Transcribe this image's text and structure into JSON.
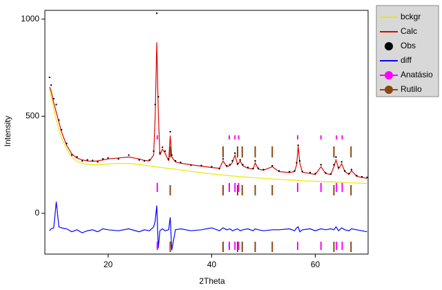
{
  "chart_data": {
    "type": "line",
    "x_label": "2Theta",
    "y_label": "Intensity",
    "xlim": [
      7.8,
      70.2
    ],
    "xticks": [
      20,
      40,
      60
    ],
    "ylim": [
      -210,
      1045
    ],
    "yticks": [
      0,
      500,
      1000
    ],
    "x": [
      8.7,
      9,
      9.5,
      10,
      10.5,
      11,
      12,
      13,
      14,
      15,
      16,
      17,
      18,
      19,
      20,
      22,
      24,
      26,
      27,
      28,
      28.8,
      29.1,
      29.4,
      29.7,
      30,
      30.5,
      31,
      31.7,
      32,
      32.3,
      33,
      34,
      36,
      38,
      40,
      41.5,
      42.2,
      42.9,
      43.5,
      44,
      44.5,
      45,
      45.5,
      46,
      47,
      48,
      48.4,
      49,
      50,
      51.7,
      53,
      55,
      56,
      56.4,
      56.7,
      57,
      57.5,
      59,
      60,
      61.1,
      62,
      63,
      63.6,
      64,
      64.5,
      65.1,
      65.7,
      66.5,
      67,
      68,
      69,
      70
    ],
    "series": [
      {
        "name": "bckgr",
        "color": "#e8e800",
        "style": "line",
        "values": [
          640,
          600,
          540,
          480,
          430,
          390,
          330,
          290,
          268,
          258,
          252,
          250,
          250,
          252,
          254,
          257,
          257,
          252,
          248,
          244,
          241,
          240,
          239,
          238,
          237,
          235,
          233,
          231,
          230,
          229,
          227,
          223,
          216,
          209,
          203,
          199,
          197,
          195,
          193,
          192,
          191,
          190,
          189,
          188,
          186,
          184,
          183,
          182,
          180,
          177,
          175,
          172,
          170,
          170,
          169,
          169,
          168,
          166,
          165,
          164,
          163,
          162,
          161,
          160,
          160,
          159,
          158,
          157,
          157,
          156,
          155,
          154
        ]
      },
      {
        "name": "Calc",
        "color": "#e00000",
        "style": "line",
        "values": [
          650,
          630,
          570,
          520,
          470,
          420,
          350,
          305,
          285,
          275,
          270,
          268,
          270,
          275,
          280,
          285,
          290,
          280,
          272,
          270,
          300,
          500,
          880,
          520,
          300,
          330,
          310,
          270,
          400,
          290,
          265,
          258,
          250,
          243,
          236,
          232,
          270,
          240,
          246,
          262,
          300,
          250,
          270,
          245,
          232,
          228,
          260,
          228,
          222,
          240,
          215,
          210,
          215,
          250,
          345,
          260,
          212,
          205,
          200,
          240,
          205,
          200,
          240,
          275,
          230,
          255,
          215,
          200,
          220,
          190,
          185,
          180
        ]
      },
      {
        "name": "Obs",
        "color": "#000000",
        "style": "dots",
        "values": [
          700,
          660,
          590,
          560,
          480,
          430,
          360,
          300,
          290,
          270,
          275,
          272,
          265,
          280,
          285,
          280,
          300,
          275,
          270,
          275,
          320,
          560,
          1030,
          600,
          310,
          340,
          320,
          280,
          420,
          300,
          270,
          262,
          248,
          246,
          240,
          230,
          280,
          245,
          250,
          270,
          310,
          255,
          275,
          250,
          236,
          230,
          270,
          232,
          225,
          245,
          218,
          214,
          218,
          260,
          350,
          270,
          215,
          210,
          205,
          250,
          208,
          202,
          250,
          290,
          235,
          265,
          218,
          204,
          225,
          194,
          188,
          185
        ]
      },
      {
        "name": "diff",
        "color": "#0000ff",
        "style": "line",
        "values": [
          -90,
          -80,
          -75,
          60,
          -70,
          -75,
          -80,
          -95,
          -85,
          -100,
          -90,
          -85,
          -95,
          -80,
          -85,
          -90,
          -80,
          -95,
          -85,
          -90,
          -70,
          -40,
          40,
          -180,
          -90,
          -80,
          -90,
          -85,
          -20,
          -190,
          -85,
          -80,
          -90,
          -85,
          -75,
          -90,
          -75,
          -85,
          -80,
          -90,
          -85,
          -80,
          -90,
          -85,
          -80,
          -90,
          -80,
          -85,
          -90,
          -85,
          -85,
          -80,
          -90,
          -75,
          -70,
          -95,
          -85,
          -80,
          -90,
          -80,
          -85,
          -80,
          -85,
          -70,
          -90,
          -75,
          -85,
          -90,
          -80,
          -85,
          -90,
          -95
        ]
      }
    ],
    "reflections": [
      {
        "name": "Anatásio",
        "color": "#ff00ff",
        "positions": [
          29.5,
          43.4,
          44.5,
          45.2,
          56.6,
          61.1,
          64.1,
          65.2
        ]
      },
      {
        "name": "Rutilo",
        "color": "#8b4513",
        "positions": [
          32.0,
          42.2,
          45.0,
          45.9,
          48.4,
          51.7,
          63.6,
          66.9
        ]
      }
    ]
  }
}
